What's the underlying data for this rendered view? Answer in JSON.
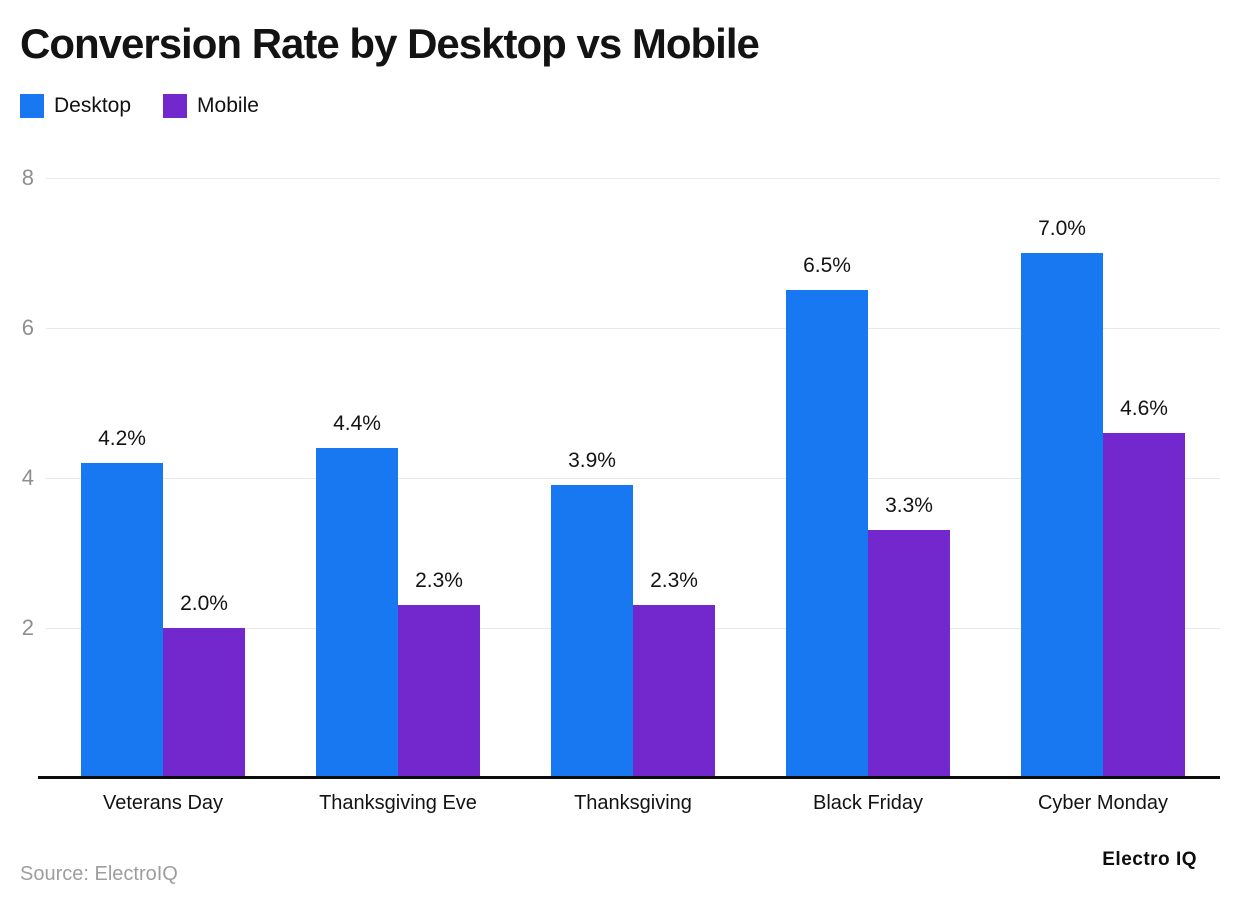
{
  "title": "Conversion Rate by Desktop vs Mobile",
  "legend": {
    "items": [
      {
        "label": "Desktop",
        "color": "#1778F2"
      },
      {
        "label": "Mobile",
        "color": "#7328CD"
      }
    ]
  },
  "chart_data": {
    "type": "bar",
    "title": "Conversion Rate by Desktop vs Mobile",
    "categories": [
      "Veterans Day",
      "Thanksgiving Eve",
      "Thanksgiving",
      "Black Friday",
      "Cyber Monday"
    ],
    "series": [
      {
        "name": "Desktop",
        "color": "#1778F2",
        "values": [
          4.2,
          4.4,
          3.9,
          6.5,
          7.0
        ],
        "data_labels": [
          "4.2%",
          "4.4%",
          "3.9%",
          "6.5%",
          "7.0%"
        ]
      },
      {
        "name": "Mobile",
        "color": "#7328CD",
        "values": [
          2.0,
          2.3,
          2.3,
          3.3,
          4.6
        ],
        "data_labels": [
          "2.0%",
          "2.3%",
          "2.3%",
          "3.3%",
          "4.6%"
        ]
      }
    ],
    "xlabel": "",
    "ylabel": "",
    "ylim": [
      0,
      8
    ],
    "yticks": [
      2,
      4,
      6,
      8
    ],
    "grid": true,
    "legend_position": "top-left"
  },
  "footer": {
    "source": "Source: ElectroIQ",
    "brand": "Electro IQ"
  },
  "colors": {
    "grid_line": "#e9e9e9",
    "axis_line": "#0c0c0c",
    "tick_label": "#8f8f8f",
    "source_text": "#9e9e9e",
    "text": "#131313"
  }
}
